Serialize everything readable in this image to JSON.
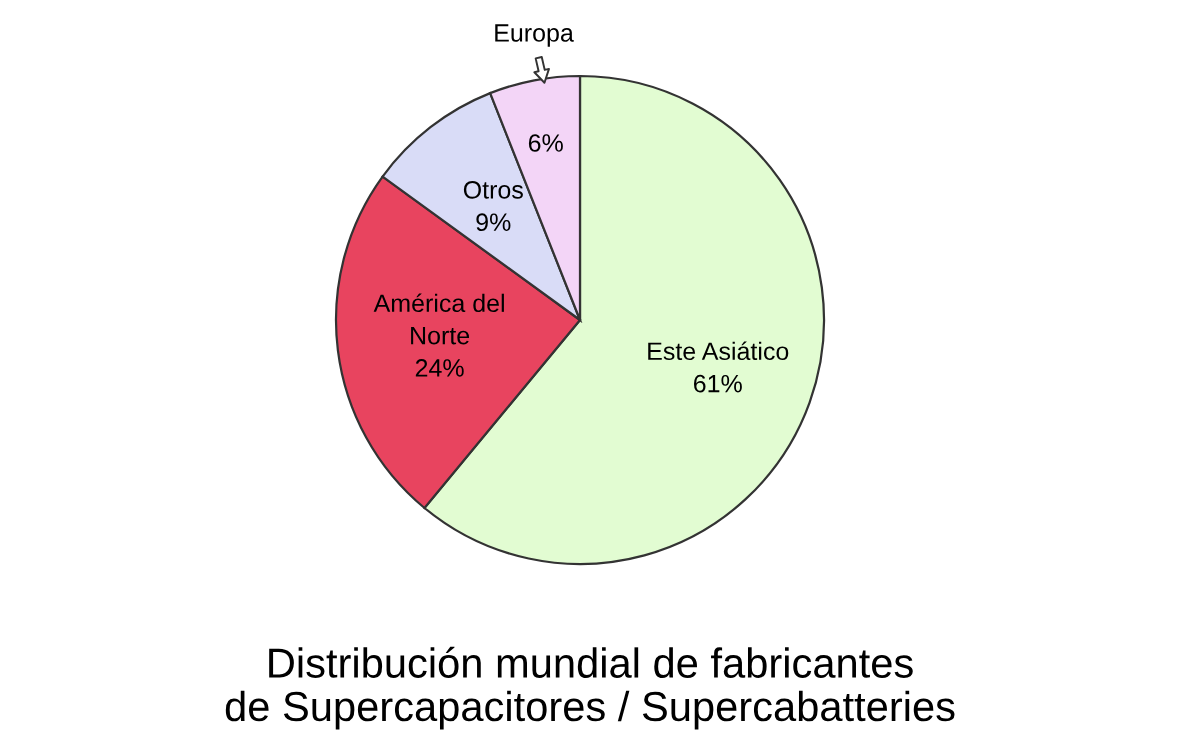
{
  "chart_data": {
    "type": "pie",
    "title": "Distribución mundial de fabricantes\nde Supercapacitores / Supercabatteries",
    "categories": [
      "Este Asiático",
      "América del\nNorte",
      "Otros",
      "Europa"
    ],
    "values": [
      61,
      24,
      9,
      6
    ],
    "colors": [
      "#e2fcd2",
      "#e8445f",
      "#d9dcf7",
      "#f3d5f7"
    ],
    "value_labels": [
      "61%",
      "24%",
      "9%",
      "6%"
    ]
  }
}
